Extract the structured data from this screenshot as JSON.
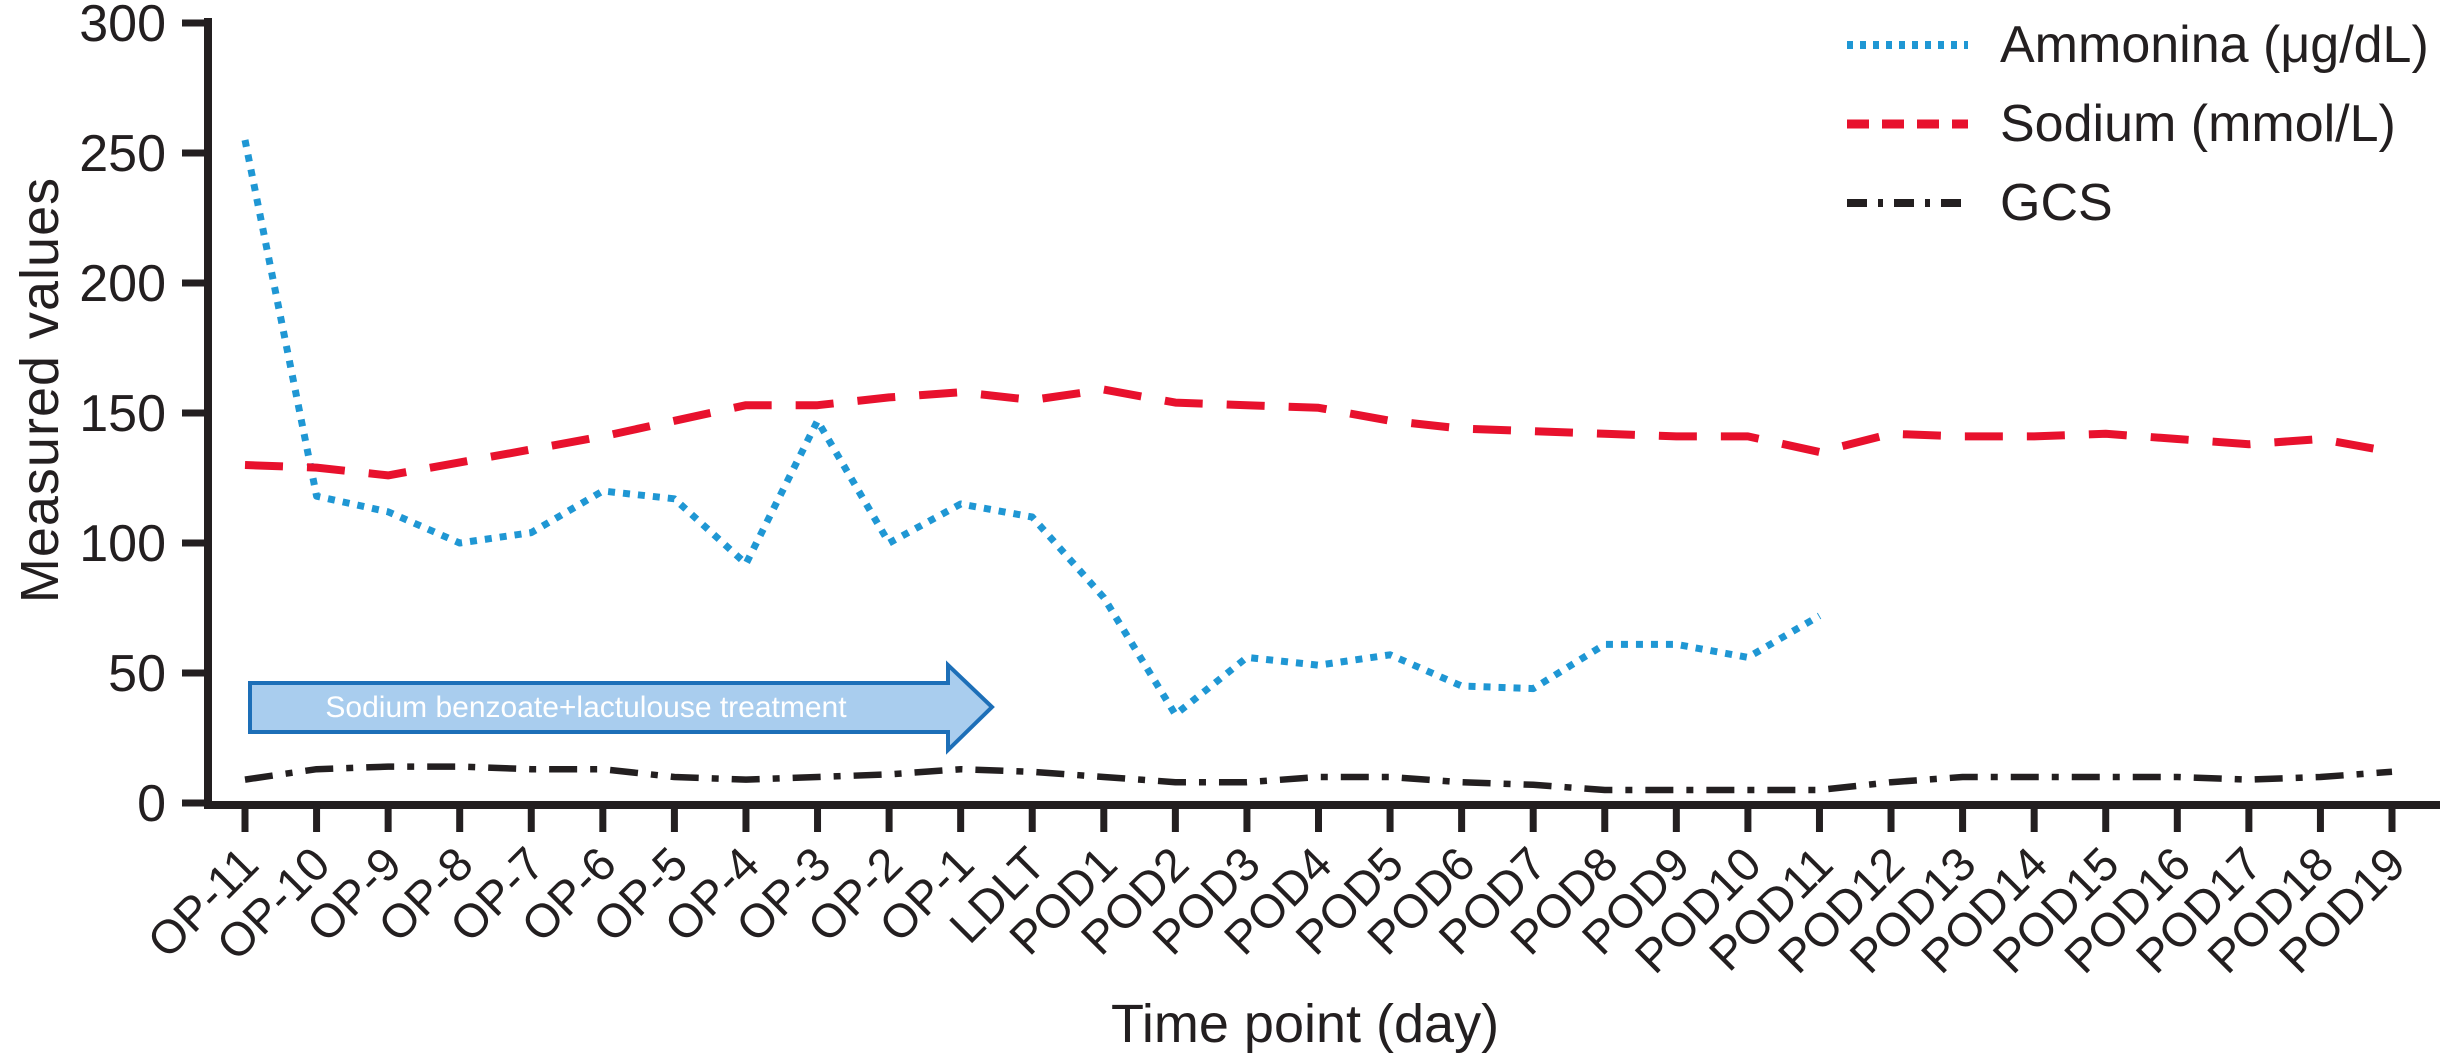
{
  "chart_data": {
    "type": "line",
    "title": "",
    "xlabel": "Time point (day)",
    "ylabel": "Measured values",
    "ylim": [
      0,
      300
    ],
    "yticks": [
      0,
      50,
      100,
      150,
      200,
      250,
      300
    ],
    "grid": false,
    "legend_position": "top-right",
    "categories": [
      "OP-11",
      "OP-10",
      "OP-9",
      "OP-8",
      "OP-7",
      "OP-6",
      "OP-5",
      "OP-4",
      "OP-3",
      "OP-2",
      "OP-1",
      "LDLT",
      "POD1",
      "POD2",
      "POD3",
      "POD4",
      "POD5",
      "POD6",
      "POD7",
      "POD8",
      "POD9",
      "POD10",
      "POD11",
      "POD12",
      "POD13",
      "POD14",
      "POD15",
      "POD16",
      "POD17",
      "POD18",
      "POD19"
    ],
    "series": [
      {
        "name": "Ammonina (μg/dL)",
        "style": "dotted",
        "color": "#1f97d4",
        "values": [
          255,
          118,
          112,
          100,
          104,
          120,
          117,
          92,
          147,
          100,
          115,
          110,
          79,
          34,
          56,
          53,
          57,
          45,
          44,
          61,
          61,
          56,
          72,
          null,
          null,
          null,
          null,
          null,
          null,
          null,
          null
        ]
      },
      {
        "name": "Sodium (mmol/L)",
        "style": "dashed",
        "color": "#e8112d",
        "values": [
          130,
          129,
          126,
          131,
          136,
          141,
          147,
          153,
          153,
          156,
          158,
          155,
          159,
          154,
          153,
          152,
          147,
          144,
          143,
          142,
          141,
          141,
          135,
          142,
          141,
          141,
          142,
          140,
          138,
          140,
          135
        ]
      },
      {
        "name": "GCS",
        "style": "dashdot",
        "color": "#231f20",
        "values": [
          9,
          13,
          14,
          14,
          13,
          13,
          10,
          9,
          10,
          11,
          13,
          12,
          10,
          8,
          8,
          10,
          10,
          8,
          7,
          5,
          5,
          5,
          5,
          8,
          10,
          10,
          10,
          10,
          9,
          10,
          12
        ]
      }
    ],
    "annotation": {
      "text": "Sodium benzoate+lactulouse treatment",
      "fill_color": "#a9cdee",
      "border_color": "#1d6fb8",
      "text_color": "#ffffff"
    },
    "axis_color": "#231f20"
  }
}
